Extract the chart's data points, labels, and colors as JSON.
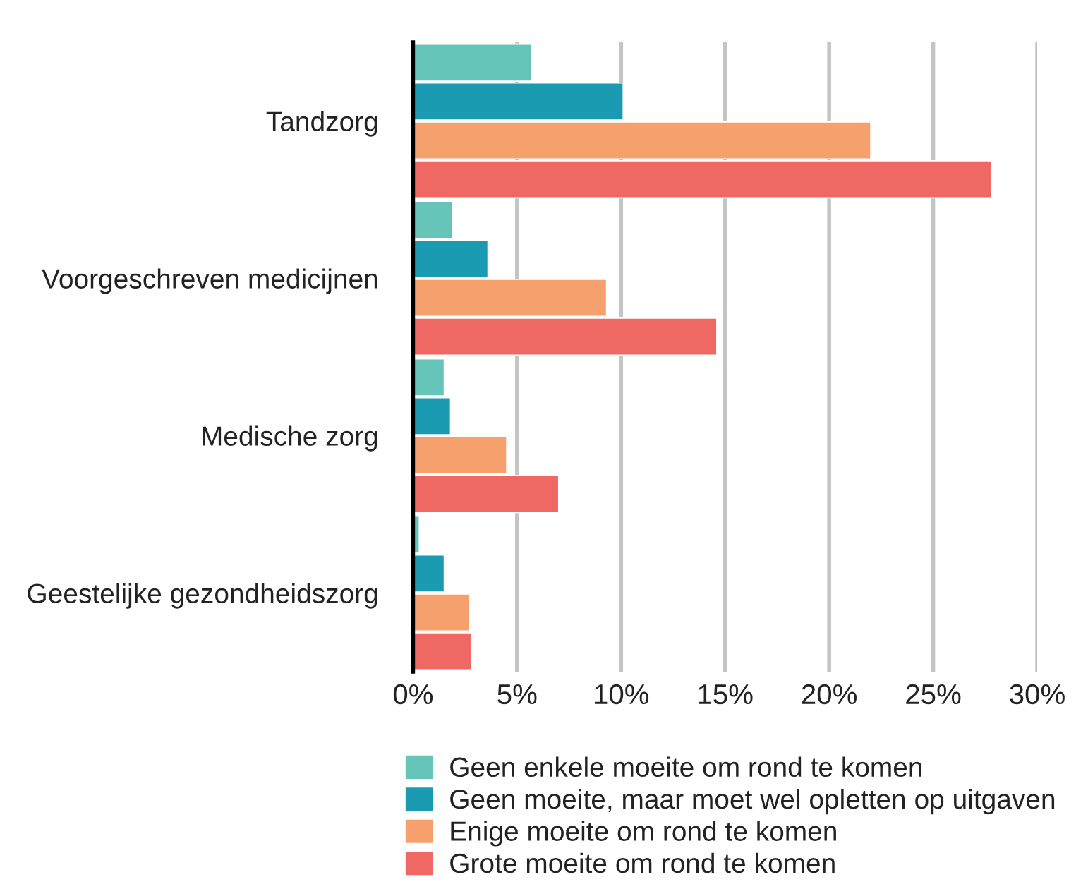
{
  "chart_data": {
    "type": "bar",
    "orientation": "horizontal",
    "categories": [
      "Tandzorg",
      "Voorgeschreven medicijnen",
      "Medische zorg",
      "Geestelijke gezondheidszorg"
    ],
    "series": [
      {
        "name": "Geen enkele moeite om rond te komen",
        "color": "#66c5b9",
        "values": [
          5.7,
          1.9,
          1.5,
          0.3
        ]
      },
      {
        "name": "Geen moeite, maar moet wel opletten op uitgaven",
        "color": "#1a9bb2",
        "values": [
          10.1,
          3.6,
          1.8,
          1.5
        ]
      },
      {
        "name": "Enige moeite om rond te komen",
        "color": "#f5a06d",
        "values": [
          22.0,
          9.3,
          4.5,
          2.7
        ]
      },
      {
        "name": "Grote moeite om rond te komen",
        "color": "#f06863",
        "values": [
          27.8,
          14.6,
          7.0,
          2.8
        ]
      }
    ],
    "xlim": [
      0,
      30
    ],
    "xticks": [
      {
        "value": 0,
        "label": "0%"
      },
      {
        "value": 5,
        "label": "5%"
      },
      {
        "value": 10,
        "label": "10%"
      },
      {
        "value": 15,
        "label": "15%"
      },
      {
        "value": 20,
        "label": "20%"
      },
      {
        "value": 25,
        "label": "25%"
      },
      {
        "value": 30,
        "label": "30%"
      }
    ],
    "grid": "x",
    "legend": "bottom"
  }
}
